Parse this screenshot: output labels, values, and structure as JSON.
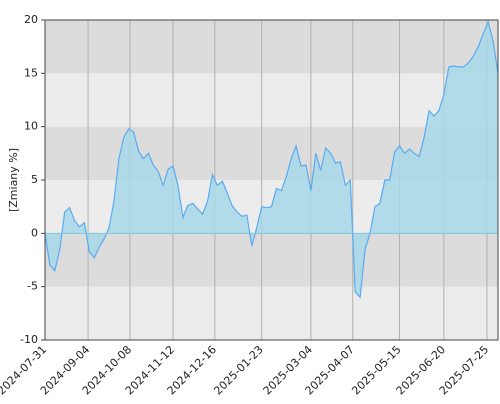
{
  "chart_data": {
    "type": "area",
    "y_label": "[Zmiany %]",
    "x": [
      "2024-07-31",
      "2024-08-04",
      "2024-08-08",
      "2024-08-12",
      "2024-08-16",
      "2024-08-20",
      "2024-08-24",
      "2024-08-28",
      "2024-09-01",
      "2024-09-05",
      "2024-09-09",
      "2024-09-13",
      "2024-09-17",
      "2024-09-21",
      "2024-09-25",
      "2024-09-29",
      "2024-10-03",
      "2024-10-07",
      "2024-10-11",
      "2024-10-15",
      "2024-10-19",
      "2024-10-23",
      "2024-10-27",
      "2024-10-31",
      "2024-11-04",
      "2024-11-08",
      "2024-11-12",
      "2024-11-16",
      "2024-11-20",
      "2024-11-24",
      "2024-11-28",
      "2024-12-02",
      "2024-12-06",
      "2024-12-10",
      "2024-12-14",
      "2024-12-18",
      "2024-12-22",
      "2024-12-26",
      "2024-12-30",
      "2025-01-03",
      "2025-01-07",
      "2025-01-11",
      "2025-01-15",
      "2025-01-19",
      "2025-01-23",
      "2025-01-27",
      "2025-01-31",
      "2025-02-04",
      "2025-02-08",
      "2025-02-12",
      "2025-02-16",
      "2025-02-20",
      "2025-02-24",
      "2025-02-28",
      "2025-03-04",
      "2025-03-08",
      "2025-03-12",
      "2025-03-16",
      "2025-03-20",
      "2025-03-24",
      "2025-03-28",
      "2025-04-01",
      "2025-04-05",
      "2025-04-09",
      "2025-04-13",
      "2025-04-17",
      "2025-04-21",
      "2025-04-25",
      "2025-04-29",
      "2025-05-03",
      "2025-05-07",
      "2025-05-11",
      "2025-05-15",
      "2025-05-19",
      "2025-05-23",
      "2025-05-27",
      "2025-05-31",
      "2025-06-04",
      "2025-06-08",
      "2025-06-12",
      "2025-06-16",
      "2025-06-20",
      "2025-06-24",
      "2025-06-28",
      "2025-07-02",
      "2025-07-06",
      "2025-07-10",
      "2025-07-14",
      "2025-07-18",
      "2025-07-22",
      "2025-07-26",
      "2025-07-30",
      "2025-08-03"
    ],
    "values": [
      0,
      -3,
      -3.5,
      -1.5,
      2,
      2.4,
      1.2,
      0.6,
      1,
      -1.7,
      -2.3,
      -1.3,
      -0.5,
      0.5,
      3,
      7,
      9,
      9.8,
      9.5,
      7.7,
      7,
      7.5,
      6.4,
      5.8,
      4.5,
      6,
      6.3,
      4.5,
      1.5,
      2.6,
      2.8,
      2.3,
      1.8,
      3,
      5.5,
      4.5,
      4.9,
      3.8,
      2.6,
      2,
      1.6,
      1.7,
      -1.2,
      0.5,
      2.5,
      2.4,
      2.5,
      4.2,
      4,
      5.3,
      7,
      8.2,
      6.3,
      6.4,
      4,
      7.5,
      5.9,
      8,
      7.5,
      6.6,
      6.7,
      4.5,
      5,
      -5.5,
      -6,
      -1.5,
      0,
      2.5,
      2.8,
      5,
      5,
      7.6,
      8.2,
      7.5,
      7.9,
      7.5,
      7.2,
      9,
      11.5,
      11,
      11.5,
      13,
      15.6,
      15.7,
      15.6,
      15.6,
      16,
      16.6,
      17.5,
      18.7,
      19.8,
      18,
      15
    ],
    "line_color": "#5aaaf0",
    "fill_color": "#a8d8ea",
    "band_colors": [
      "#dcdcdc",
      "#ececec"
    ],
    "xlim": [
      "2024-07-31",
      "2025-08-03"
    ],
    "xticks": [
      "2024-07-31",
      "2024-09-04",
      "2024-10-08",
      "2024-11-12",
      "2024-12-16",
      "2025-01-23",
      "2025-03-04",
      "2025-04-07",
      "2025-05-15",
      "2025-06-20",
      "2025-07-25"
    ],
    "ylim": [
      -10,
      20
    ],
    "yticks": [
      -10,
      -5,
      0,
      5,
      10,
      15,
      20
    ],
    "grid": true
  }
}
